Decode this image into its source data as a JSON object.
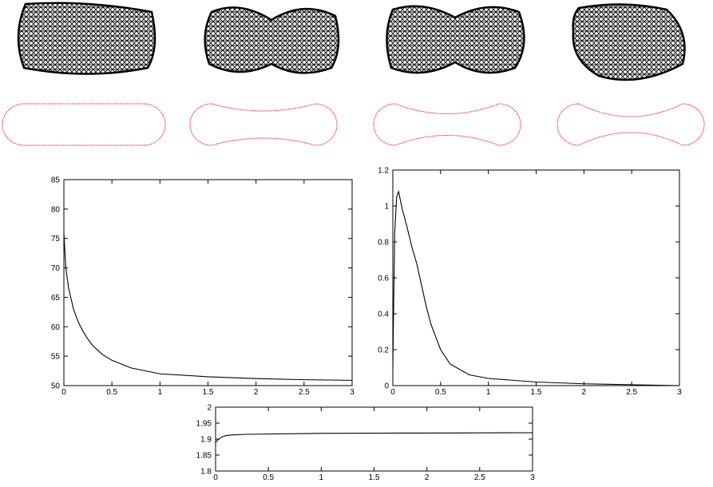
{
  "chart_data": [
    {
      "type": "line",
      "xlim": [
        0,
        3
      ],
      "ylim": [
        50,
        85
      ],
      "xticks": [
        0,
        0.5,
        1,
        1.5,
        2,
        2.5,
        3
      ],
      "yticks": [
        50,
        55,
        60,
        65,
        70,
        75,
        80,
        85
      ],
      "x": [
        0,
        0.02,
        0.05,
        0.1,
        0.15,
        0.2,
        0.25,
        0.3,
        0.4,
        0.5,
        0.7,
        1,
        1.5,
        2,
        2.5,
        3
      ],
      "series": [
        {
          "color": "#000000",
          "values": [
            76,
            70,
            66.5,
            63,
            60.8,
            59.2,
            57.9,
            56.8,
            55.3,
            54.3,
            53,
            52,
            51.5,
            51.2,
            51,
            50.9
          ]
        }
      ]
    },
    {
      "type": "line",
      "xlim": [
        0,
        3
      ],
      "ylim": [
        0,
        1.2
      ],
      "xticks": [
        0,
        0.5,
        1,
        1.5,
        2,
        2.5,
        3
      ],
      "yticks": [
        0,
        0.2,
        0.4,
        0.6,
        0.8,
        1,
        1.2
      ],
      "x": [
        0,
        0.01,
        0.02,
        0.04,
        0.06,
        0.1,
        0.15,
        0.2,
        0.25,
        0.3,
        0.35,
        0.4,
        0.5,
        0.6,
        0.8,
        1,
        1.5,
        2,
        2.5,
        3
      ],
      "series": [
        {
          "color": "#000000",
          "values": [
            0.1,
            0.5,
            0.85,
            1.05,
            1.08,
            0.98,
            0.88,
            0.77,
            0.68,
            0.56,
            0.44,
            0.34,
            0.2,
            0.12,
            0.06,
            0.04,
            0.02,
            0.01,
            0.005,
            0
          ]
        }
      ]
    },
    {
      "type": "line",
      "xlim": [
        0,
        3
      ],
      "ylim": [
        1.8,
        2
      ],
      "xticks": [
        0,
        0.5,
        1,
        1.5,
        2,
        2.5,
        3
      ],
      "yticks": [
        1.8,
        1.85,
        1.9,
        1.95,
        2
      ],
      "x": [
        0,
        0.03,
        0.06,
        0.1,
        0.15,
        0.3,
        1,
        2,
        3
      ],
      "series": [
        {
          "color": "#000000",
          "values": [
            1.89,
            1.9,
            1.907,
            1.911,
            1.913,
            1.915,
            1.918,
            1.919,
            1.92
          ]
        }
      ]
    }
  ]
}
